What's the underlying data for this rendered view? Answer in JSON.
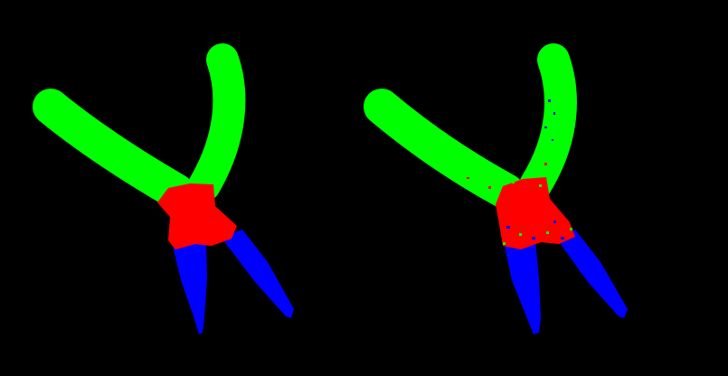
{
  "panels": [
    {
      "name": "ground-truth-mask",
      "regions": [
        {
          "name": "handles",
          "color": "#00ff00"
        },
        {
          "name": "pivot",
          "color": "#ff0000"
        },
        {
          "name": "jaws",
          "color": "#0000ff"
        }
      ]
    },
    {
      "name": "predicted-mask",
      "regions": [
        {
          "name": "handles",
          "color": "#00ff00"
        },
        {
          "name": "pivot",
          "color": "#ff0000"
        },
        {
          "name": "jaws",
          "color": "#0000ff"
        }
      ]
    }
  ],
  "colors": {
    "background": "#000000",
    "handles": "#00ff00",
    "pivot": "#ff0000",
    "jaws": "#0000ff"
  }
}
